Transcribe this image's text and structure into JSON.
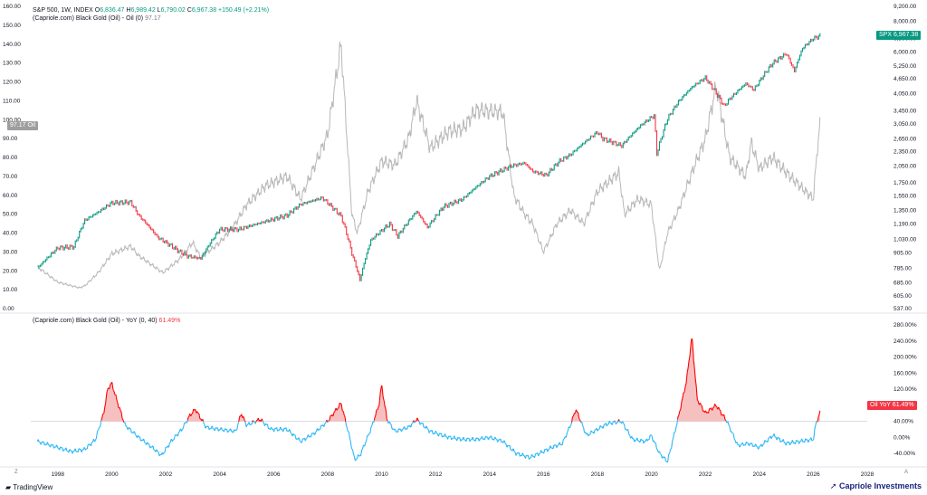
{
  "legend_top": {
    "symbol": "S&P 500, 1W, INDEX",
    "o_label": "O",
    "o": "6,836.47",
    "h_label": "H",
    "h": "6,989.42",
    "l_label": "L",
    "l": "6,790.02",
    "c_label": "C",
    "c": "6,967.38",
    "change": "+150.49 (+2.21%)",
    "oil_name": "(Capriole.com) Black Gold (Oil) - Oil (0)",
    "oil_value": "97.17"
  },
  "legend_bottom": {
    "name": "(Capriole.com) Black Gold (Oil) - YoY (0, 40)",
    "value": "61.49%"
  },
  "badges": {
    "spx_label": "SPX",
    "spx_value": "6,967.38",
    "oil_value": "97.17",
    "oil_label": "Oil",
    "yoy_label": "Oil YoY",
    "yoy_value": "61.49%"
  },
  "footer": {
    "tradingview": "TradingView",
    "capriole": "Capriole Investments",
    "left_mark": "Z",
    "right_mark": "A"
  },
  "colors": {
    "up": "#089981",
    "down": "#f23645",
    "oil": "#b8b8b8",
    "yoy_line": "#29b6f6",
    "yoy_high": "#ff0000",
    "yoy_fill": "#f7c0c0",
    "grid": "#f0f3fa",
    "text": "#131722"
  },
  "chart_data": [
    {
      "type": "line",
      "series": [
        {
          "name": "S&P 500",
          "scale": "log",
          "x": [
            1997.25,
            1998.0,
            1998.6,
            1999.0,
            1999.5,
            2000.0,
            2000.7,
            2001.0,
            2001.7,
            2002.5,
            2002.8,
            2003.3,
            2004.0,
            2004.7,
            2005.5,
            2006.5,
            2007.0,
            2007.8,
            2008.5,
            2008.9,
            2009.2,
            2009.6,
            2010.3,
            2010.6,
            2011.3,
            2011.7,
            2012.3,
            2013.0,
            2014.0,
            2014.8,
            2015.3,
            2015.6,
            2016.1,
            2016.6,
            2017.0,
            2018.0,
            2018.2,
            2018.9,
            2019.6,
            2020.1,
            2020.2,
            2020.6,
            2021.0,
            2021.5,
            2022.0,
            2022.7,
            2022.9,
            2023.5,
            2023.8,
            2024.5,
            2025.0,
            2025.3,
            2025.6,
            2026.0,
            2026.25
          ],
          "values": [
            785,
            950,
            960,
            1230,
            1330,
            1450,
            1460,
            1290,
            1050,
            920,
            880,
            860,
            1130,
            1130,
            1200,
            1290,
            1430,
            1520,
            1280,
            900,
            700,
            1020,
            1190,
            1060,
            1340,
            1150,
            1400,
            1500,
            1860,
            2050,
            2110,
            1950,
            1880,
            2150,
            2280,
            2820,
            2650,
            2480,
            3000,
            3300,
            2300,
            3200,
            3750,
            4300,
            4700,
            3600,
            3850,
            4450,
            4200,
            5400,
            5900,
            5000,
            6200,
            6800,
            6967.38
          ],
          "ylim_ticks": [
            537,
            605,
            685,
            785,
            905,
            1030,
            1190,
            1350,
            1550,
            1750,
            2050,
            2350,
            2650,
            3050,
            3450,
            4050,
            4650,
            5250,
            6000,
            6800,
            8000,
            9200
          ]
        },
        {
          "name": "Oil",
          "x": [
            1997.25,
            1998.0,
            1998.8,
            1999.0,
            1999.5,
            2000.0,
            2000.7,
            2001.0,
            2001.9,
            2002.5,
            2003.0,
            2003.3,
            2004.0,
            2004.5,
            2005.0,
            2005.7,
            2006.5,
            2007.0,
            2007.5,
            2008.0,
            2008.5,
            2008.9,
            2009.1,
            2009.5,
            2010.0,
            2010.5,
            2011.0,
            2011.3,
            2011.8,
            2012.5,
            2013.0,
            2013.5,
            2014.5,
            2014.9,
            2015.3,
            2015.6,
            2016.0,
            2016.5,
            2017.0,
            2017.5,
            2018.0,
            2018.8,
            2019.0,
            2019.5,
            2020.0,
            2020.3,
            2020.6,
            2021.0,
            2021.5,
            2022.0,
            2022.4,
            2022.9,
            2023.5,
            2023.7,
            2024.0,
            2024.5,
            2025.0,
            2025.5,
            2026.0,
            2026.15,
            2026.25
          ],
          "values": [
            22,
            14,
            11,
            12,
            19,
            29,
            33,
            28,
            19,
            26,
            35,
            27,
            35,
            43,
            55,
            65,
            70,
            58,
            75,
            92,
            140,
            50,
            40,
            62,
            78,
            76,
            90,
            110,
            85,
            94,
            95,
            105,
            104,
            60,
            50,
            45,
            30,
            45,
            52,
            45,
            62,
            72,
            50,
            58,
            55,
            20,
            40,
            52,
            72,
            90,
            118,
            80,
            70,
            88,
            74,
            80,
            72,
            65,
            58,
            85,
            97.17
          ],
          "ylim": [
            0,
            160
          ],
          "ylim_ticks": [
            0,
            10,
            20,
            30,
            40,
            50,
            60,
            70,
            80,
            90,
            100,
            110,
            120,
            130,
            140,
            150,
            160
          ]
        }
      ],
      "xlim": [
        1997,
        2028
      ],
      "x_ticks": [
        1998,
        2000,
        2002,
        2004,
        2006,
        2008,
        2010,
        2012,
        2014,
        2016,
        2018,
        2020,
        2022,
        2024,
        2026,
        2028
      ]
    },
    {
      "type": "area",
      "series": [
        {
          "name": "Oil YoY",
          "x": [
            1997.25,
            1998.0,
            1998.5,
            1999.0,
            1999.4,
            1999.7,
            1999.85,
            2000.0,
            2000.2,
            2000.5,
            2001.0,
            2001.5,
            2001.85,
            2002.2,
            2002.6,
            2002.9,
            2003.1,
            2003.5,
            2004.0,
            2004.6,
            2004.8,
            2005.0,
            2005.5,
            2005.9,
            2006.5,
            2007.0,
            2007.5,
            2008.0,
            2008.5,
            2008.8,
            2009.0,
            2009.2,
            2009.6,
            2009.9,
            2010.0,
            2010.2,
            2010.5,
            2011.0,
            2011.3,
            2011.8,
            2012.5,
            2013.0,
            2013.5,
            2014.0,
            2014.5,
            2015.0,
            2015.5,
            2016.0,
            2016.3,
            2016.7,
            2017.0,
            2017.2,
            2017.6,
            2018.0,
            2018.4,
            2018.9,
            2019.3,
            2019.8,
            2020.0,
            2020.3,
            2020.6,
            2021.0,
            2021.3,
            2021.5,
            2021.7,
            2022.0,
            2022.4,
            2022.8,
            2023.2,
            2023.6,
            2024.0,
            2024.5,
            2025.0,
            2025.5,
            2026.0,
            2026.1,
            2026.25
          ],
          "values": [
            -10,
            -25,
            -35,
            -30,
            -5,
            60,
            120,
            135,
            90,
            30,
            0,
            -25,
            -45,
            -10,
            20,
            55,
            70,
            25,
            20,
            15,
            60,
            30,
            45,
            20,
            20,
            -10,
            10,
            40,
            85,
            5,
            -55,
            -45,
            20,
            80,
            130,
            45,
            15,
            25,
            45,
            15,
            0,
            -5,
            -5,
            0,
            -10,
            -40,
            -50,
            -35,
            -25,
            -15,
            30,
            70,
            5,
            20,
            35,
            40,
            -5,
            -10,
            5,
            -40,
            -60,
            50,
            140,
            250,
            95,
            60,
            80,
            40,
            -20,
            -15,
            -25,
            5,
            -15,
            -10,
            -5,
            35,
            61.49
          ],
          "threshold": 40,
          "ylim": [
            -60,
            280
          ],
          "ylim_ticks": [
            -40,
            0,
            40,
            80,
            120,
            160,
            200,
            240,
            280
          ]
        }
      ],
      "xlim": [
        1997,
        2028
      ]
    }
  ]
}
